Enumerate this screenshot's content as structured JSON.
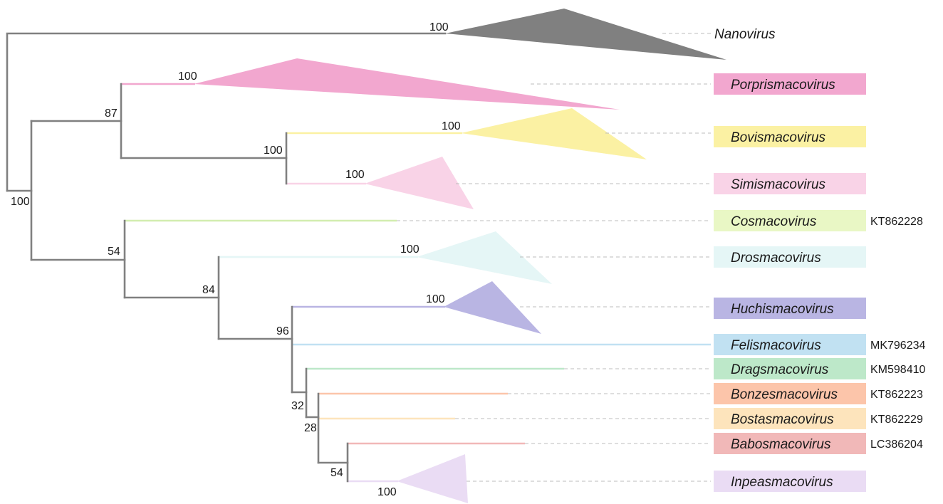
{
  "taxa": [
    {
      "name": "Nanovirus",
      "color": "#808080",
      "accession": ""
    },
    {
      "name": "Porprismacovirus",
      "color": "#f2a7cf",
      "accession": ""
    },
    {
      "name": "Bovismacovirus",
      "color": "#fbf1a3",
      "accession": ""
    },
    {
      "name": "Simismacovirus",
      "color": "#f9d3e7",
      "accession": ""
    },
    {
      "name": "Cosmacovirus",
      "color": "#e9f7c5",
      "accession": "KT862228"
    },
    {
      "name": "Drosmacovirus",
      "color": "#e5f6f6",
      "accession": ""
    },
    {
      "name": "Huchismacovirus",
      "color": "#b9b5e3",
      "accession": ""
    },
    {
      "name": "Felismacovirus",
      "color": "#c1e1f2",
      "accession": "MK796234"
    },
    {
      "name": "Dragsmacovirus",
      "color": "#bde8c9",
      "accession": "KM598410"
    },
    {
      "name": "Bonzesmacovirus",
      "color": "#fcc5aa",
      "accession": "KT862223"
    },
    {
      "name": "Bostasmacovirus",
      "color": "#fde4bc",
      "accession": "KT862229"
    },
    {
      "name": "Babosmacovirus",
      "color": "#f1b8b8",
      "accession": "LC386204"
    },
    {
      "name": "Inpeasmacovirus",
      "color": "#eadcf4",
      "accession": ""
    }
  ],
  "support_values": {
    "root": "100",
    "porprismacovirus_bovismacovirus_simismacovirus": "87",
    "bovismacovirus_simismacovirus": "100",
    "cosmacovirus_rest": "54",
    "drosmacovirus_rest": "84",
    "huchismacovirus_rest": "96",
    "dragsmacovirus_rest": "32",
    "bonzesmacovirus_rest": "28",
    "babosmacovirus_inpeasmacovirus": "54",
    "nanovirus_clade": "100",
    "porprismacovirus_clade": "100",
    "bovismacovirus_clade": "100",
    "simismacovirus_clade": "100",
    "drosmacovirus_clade": "100",
    "huchismacovirus_clade": "100",
    "inpeasmacovirus_clade": "100"
  }
}
